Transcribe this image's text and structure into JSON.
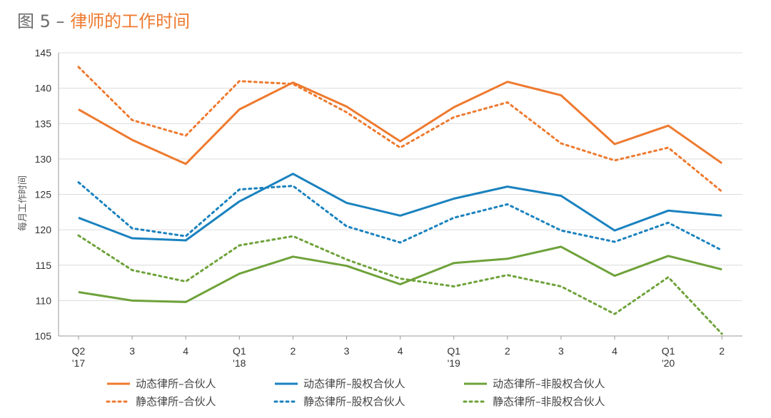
{
  "title": {
    "prefix": "图 5",
    "separator": "–",
    "text": "律师的工作时间"
  },
  "chart_data": {
    "type": "line",
    "ylabel": "每月工作时间",
    "xlabel": "",
    "ylim": [
      105,
      145
    ],
    "yticks": [
      105,
      110,
      115,
      120,
      125,
      130,
      135,
      140,
      145
    ],
    "grid": true,
    "legend_position": "bottom",
    "categories": [
      {
        "line1": "Q2",
        "line2": "'17"
      },
      {
        "line1": "3",
        "line2": ""
      },
      {
        "line1": "4",
        "line2": ""
      },
      {
        "line1": "Q1",
        "line2": "'18"
      },
      {
        "line1": "2",
        "line2": ""
      },
      {
        "line1": "3",
        "line2": ""
      },
      {
        "line1": "4",
        "line2": ""
      },
      {
        "line1": "Q1",
        "line2": "'19"
      },
      {
        "line1": "2",
        "line2": ""
      },
      {
        "line1": "3",
        "line2": ""
      },
      {
        "line1": "4",
        "line2": ""
      },
      {
        "line1": "Q1",
        "line2": "'20"
      },
      {
        "line1": "2",
        "line2": ""
      }
    ],
    "series": [
      {
        "name": "动态律所–合伙人",
        "color": "#ee7a2f",
        "style": "solid",
        "values": [
          137.0,
          132.7,
          129.3,
          137.0,
          140.8,
          137.4,
          132.5,
          137.3,
          140.9,
          139.0,
          132.1,
          134.7,
          129.4
        ]
      },
      {
        "name": "静态律所–合伙人",
        "color": "#ee7a2f",
        "style": "dotted",
        "values": [
          143.0,
          135.5,
          133.3,
          141.0,
          140.6,
          136.6,
          131.6,
          135.9,
          138.0,
          132.2,
          129.8,
          131.6,
          125.4
        ]
      },
      {
        "name": "动态律所–股权合伙人",
        "color": "#1a82bf",
        "style": "solid",
        "values": [
          121.7,
          118.8,
          118.5,
          124.0,
          127.9,
          123.8,
          122.0,
          124.4,
          126.1,
          124.8,
          119.9,
          122.7,
          122.0
        ]
      },
      {
        "name": "静态律所–股权合伙人",
        "color": "#1a82bf",
        "style": "dotted",
        "values": [
          126.7,
          120.2,
          119.1,
          125.7,
          126.2,
          120.5,
          118.2,
          121.7,
          123.6,
          119.9,
          118.3,
          121.0,
          117.1
        ]
      },
      {
        "name": "动态律所–非股权合伙人",
        "color": "#6ea23a",
        "style": "solid",
        "values": [
          111.2,
          110.0,
          109.8,
          113.8,
          116.2,
          114.9,
          112.3,
          115.3,
          115.9,
          117.6,
          113.5,
          116.3,
          114.4
        ]
      },
      {
        "name": "静态律所–非股权合伙人",
        "color": "#6ea23a",
        "style": "dotted",
        "values": [
          119.2,
          114.3,
          112.7,
          117.8,
          119.1,
          115.8,
          113.1,
          112.0,
          113.6,
          112.0,
          108.1,
          113.3,
          105.3
        ]
      }
    ]
  }
}
